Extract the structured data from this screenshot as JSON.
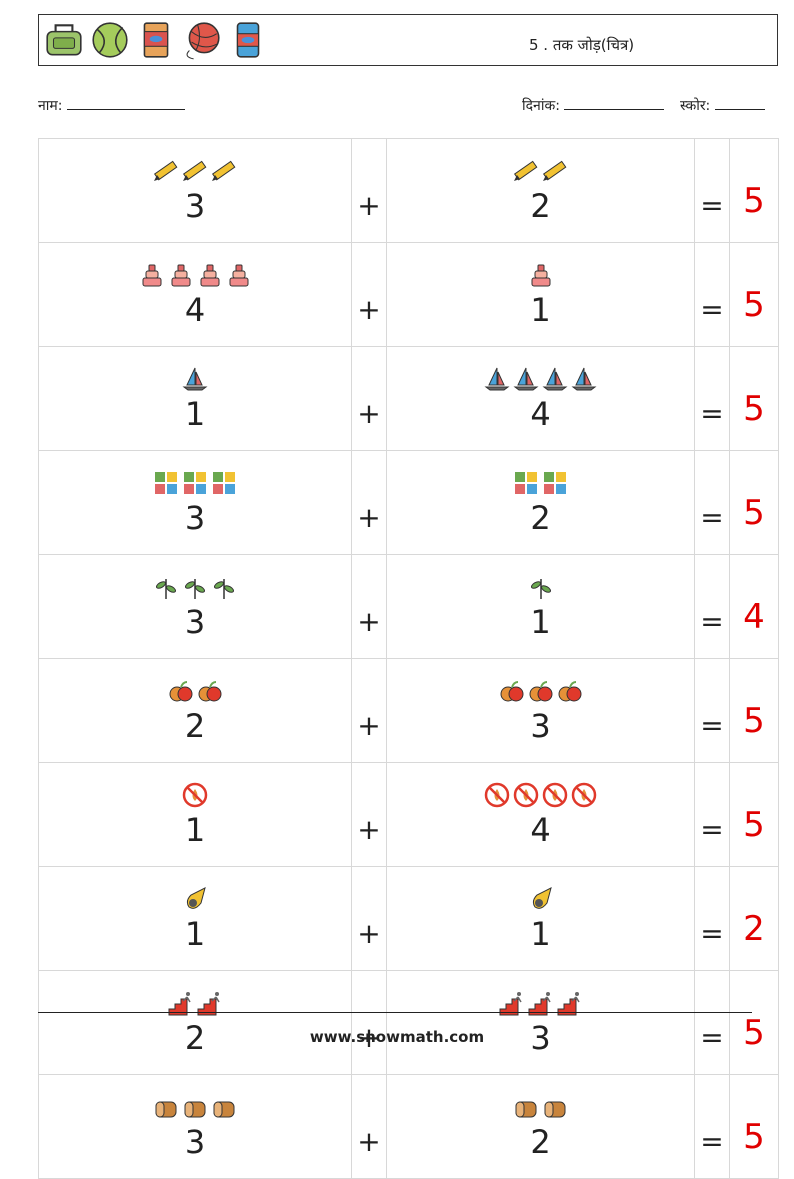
{
  "header": {
    "title": "5 . तक जोड़(चित्र)",
    "icons": [
      "bag-icon",
      "tennis-ball-icon",
      "fish-food-packet-icon",
      "yarn-ball-icon",
      "fish-can-icon"
    ]
  },
  "meta": {
    "name_label": "नाम:",
    "date_label": "दिनांक:",
    "score_label": "स्कोर:"
  },
  "rows": [
    {
      "icon": "pencil-icon",
      "a": "3",
      "b": "2",
      "plus": "+",
      "eq": "=",
      "answer": "5"
    },
    {
      "icon": "cake-icon",
      "a": "4",
      "b": "1",
      "plus": "+",
      "eq": "=",
      "answer": "5"
    },
    {
      "icon": "sailboat-icon",
      "a": "1",
      "b": "4",
      "plus": "+",
      "eq": "=",
      "answer": "5"
    },
    {
      "icon": "puzzle-icon",
      "a": "3",
      "b": "2",
      "plus": "+",
      "eq": "=",
      "answer": "5"
    },
    {
      "icon": "plant-icon",
      "a": "3",
      "b": "1",
      "plus": "+",
      "eq": "=",
      "answer": "4"
    },
    {
      "icon": "apple-icon",
      "a": "2",
      "b": "3",
      "plus": "+",
      "eq": "=",
      "answer": "5"
    },
    {
      "icon": "no-fire-icon",
      "a": "1",
      "b": "4",
      "plus": "+",
      "eq": "=",
      "answer": "5"
    },
    {
      "icon": "meteor-icon",
      "a": "1",
      "b": "1",
      "plus": "+",
      "eq": "=",
      "answer": "2"
    },
    {
      "icon": "stairs-runner-icon",
      "a": "2",
      "b": "3",
      "plus": "+",
      "eq": "=",
      "answer": "5"
    },
    {
      "icon": "bread-icon",
      "a": "3",
      "b": "2",
      "plus": "+",
      "eq": "=",
      "answer": "5"
    }
  ],
  "footer": {
    "url": "www.snowmath.com"
  }
}
